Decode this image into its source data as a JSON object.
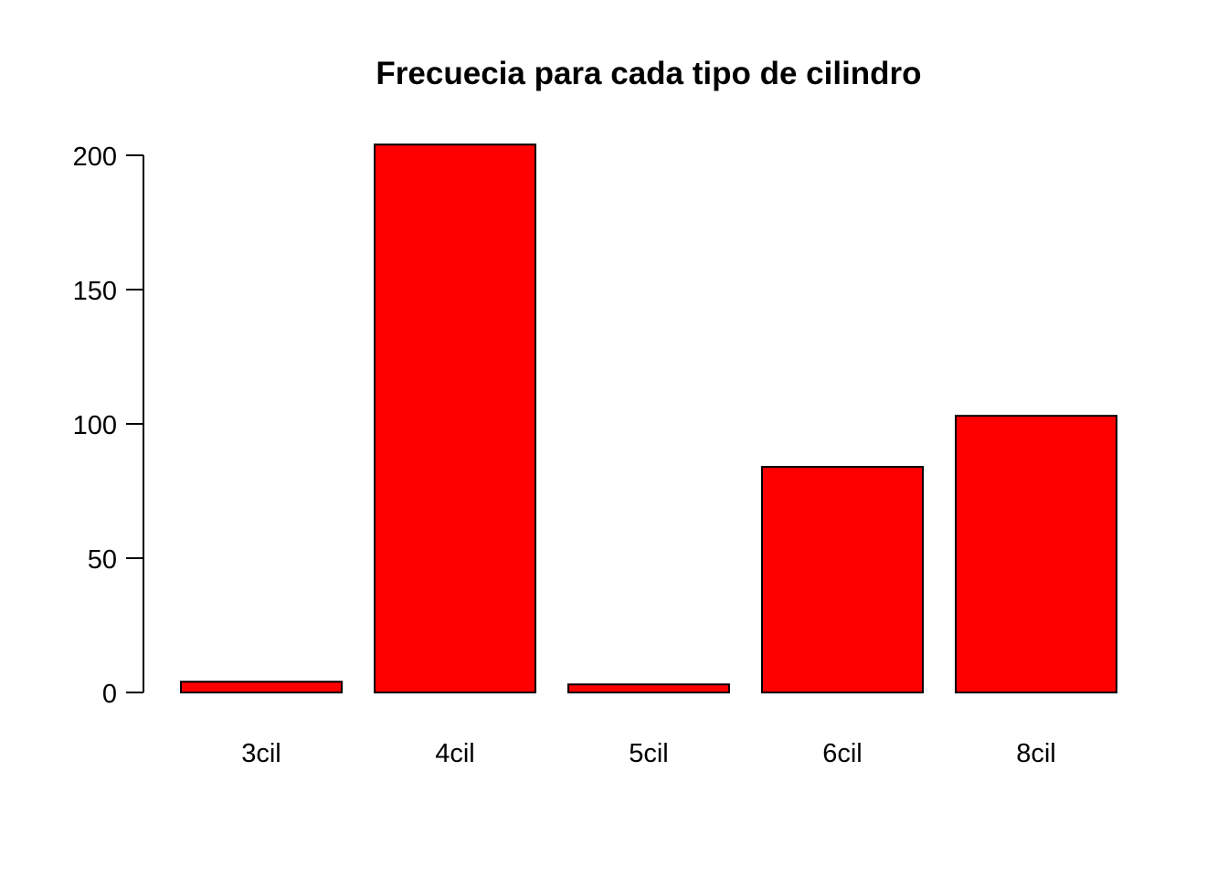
{
  "chart_data": {
    "type": "bar",
    "title": "Frecuecia para cada tipo de cilindro",
    "xlabel": "",
    "ylabel": "",
    "categories": [
      "3cil",
      "4cil",
      "5cil",
      "6cil",
      "8cil"
    ],
    "values": [
      4,
      204,
      3,
      84,
      103
    ],
    "ylim": [
      0,
      204
    ],
    "y_ticks": [
      0,
      50,
      100,
      150,
      200
    ],
    "y_tick_labels": [
      "0",
      "50",
      "100",
      "150",
      "200"
    ],
    "bar_color": "#ff0000",
    "bar_border_color": "#000000",
    "grid": false,
    "legend": "none"
  }
}
